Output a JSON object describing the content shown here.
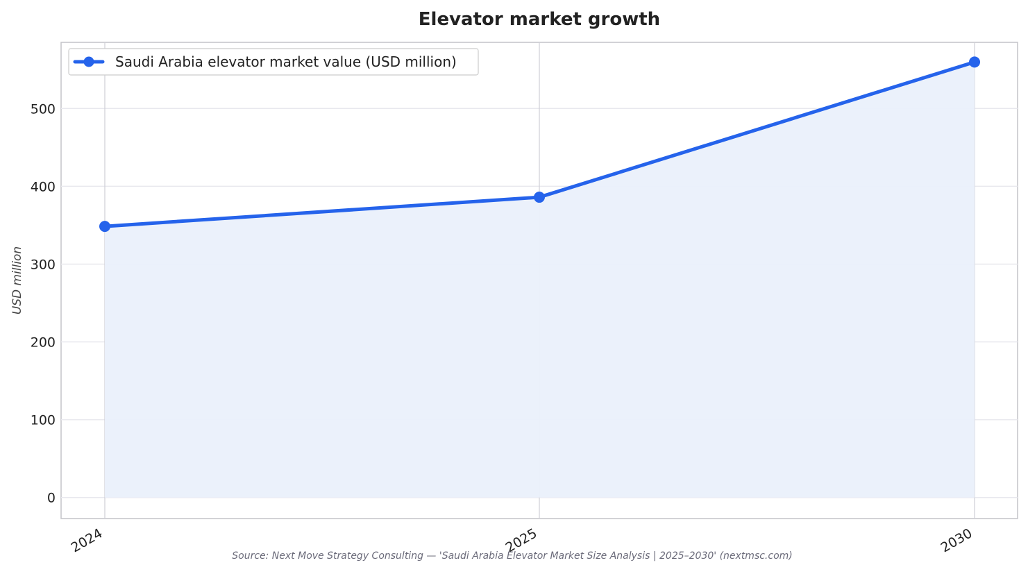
{
  "chart_data": {
    "type": "area",
    "title": "Elevator market growth",
    "xlabel": "",
    "ylabel": "USD million",
    "categories": [
      "2024",
      "2025",
      "2030"
    ],
    "series": [
      {
        "name": "Saudi Arabia elevator market value (USD million)",
        "values": [
          348.5,
          386.0,
          559.7
        ]
      }
    ],
    "ylim": [
      -27,
      585
    ],
    "yticks": [
      0,
      100,
      200,
      300,
      400,
      500
    ],
    "grid": true,
    "legend_position": "upper left",
    "colors": {
      "line": "#2563eb",
      "fill": "#eaf0fb",
      "grid": "#e8e8ee",
      "frame": "#c4c4c8"
    }
  },
  "source_note": "Source: Next Move Strategy Consulting — 'Saudi Arabia Elevator Market Size Analysis | 2025–2030' (nextmsc.com)"
}
